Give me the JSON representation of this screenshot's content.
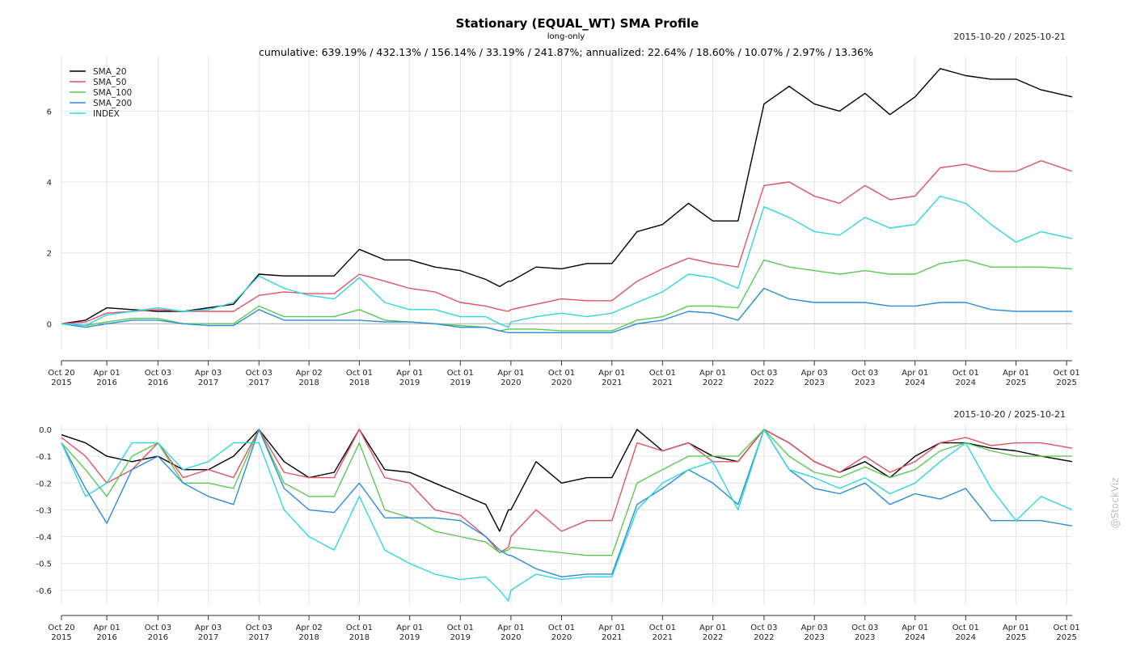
{
  "chart_data": [
    {
      "type": "line",
      "title": "Stationary (EQUAL_WT) SMA Profile",
      "subtitle": "long-only",
      "date_range": "2015-10-20 / 2025-10-21",
      "summary": "cumulative: 639.19% / 432.13% / 156.14% / 33.19% / 241.87%; annualized: 22.64% / 18.60% / 10.07% / 2.97% / 13.36%",
      "ylim": [
        -0.7,
        7.4
      ],
      "yticks": [
        0,
        2,
        4,
        6
      ],
      "ytick_labels": [
        "0",
        "2",
        "4",
        "6"
      ],
      "grid": true,
      "legend_position": "top-left",
      "x_ticks": [
        {
          "date": "2015-10-20",
          "line1": "Oct 20",
          "line2": "2015"
        },
        {
          "date": "2016-04-01",
          "line1": "Apr 01",
          "line2": "2016"
        },
        {
          "date": "2016-10-03",
          "line1": "Oct 03",
          "line2": "2016"
        },
        {
          "date": "2017-04-03",
          "line1": "Apr 03",
          "line2": "2017"
        },
        {
          "date": "2017-10-03",
          "line1": "Oct 03",
          "line2": "2017"
        },
        {
          "date": "2018-04-02",
          "line1": "Apr 02",
          "line2": "2018"
        },
        {
          "date": "2018-10-01",
          "line1": "Oct 01",
          "line2": "2018"
        },
        {
          "date": "2019-04-01",
          "line1": "Apr 01",
          "line2": "2019"
        },
        {
          "date": "2019-10-01",
          "line1": "Oct 01",
          "line2": "2019"
        },
        {
          "date": "2020-04-01",
          "line1": "Apr 01",
          "line2": "2020"
        },
        {
          "date": "2020-10-01",
          "line1": "Oct 01",
          "line2": "2020"
        },
        {
          "date": "2021-04-01",
          "line1": "Apr 01",
          "line2": "2021"
        },
        {
          "date": "2021-10-01",
          "line1": "Oct 01",
          "line2": "2021"
        },
        {
          "date": "2022-04-01",
          "line1": "Apr 01",
          "line2": "2022"
        },
        {
          "date": "2022-10-03",
          "line1": "Oct 03",
          "line2": "2022"
        },
        {
          "date": "2023-04-03",
          "line1": "Apr 03",
          "line2": "2023"
        },
        {
          "date": "2023-10-03",
          "line1": "Oct 03",
          "line2": "2023"
        },
        {
          "date": "2024-04-01",
          "line1": "Apr 01",
          "line2": "2024"
        },
        {
          "date": "2024-10-01",
          "line1": "Oct 01",
          "line2": "2024"
        },
        {
          "date": "2025-04-01",
          "line1": "Apr 01",
          "line2": "2025"
        },
        {
          "date": "2025-10-01",
          "line1": "Oct 01",
          "line2": "2025"
        }
      ],
      "x": [
        "2015-10-20",
        "2016-01-15",
        "2016-04-01",
        "2016-07-01",
        "2016-10-03",
        "2017-01-02",
        "2017-04-03",
        "2017-07-03",
        "2017-10-03",
        "2018-01-02",
        "2018-04-02",
        "2018-07-02",
        "2018-10-01",
        "2019-01-01",
        "2019-04-01",
        "2019-07-01",
        "2019-10-01",
        "2020-01-01",
        "2020-02-20",
        "2020-03-23",
        "2020-04-01",
        "2020-07-01",
        "2020-10-01",
        "2021-01-01",
        "2021-04-01",
        "2021-07-01",
        "2021-10-01",
        "2022-01-03",
        "2022-04-01",
        "2022-07-01",
        "2022-10-03",
        "2023-01-02",
        "2023-04-03",
        "2023-07-03",
        "2023-10-03",
        "2024-01-01",
        "2024-04-01",
        "2024-07-01",
        "2024-10-01",
        "2025-01-01",
        "2025-04-01",
        "2025-07-01",
        "2025-10-21"
      ],
      "series": [
        {
          "name": "SMA_20",
          "color": "#000000",
          "values": [
            0.0,
            0.1,
            0.45,
            0.4,
            0.35,
            0.35,
            0.45,
            0.55,
            1.4,
            1.35,
            1.35,
            1.35,
            2.1,
            1.8,
            1.8,
            1.6,
            1.5,
            1.25,
            1.05,
            1.2,
            1.2,
            1.6,
            1.55,
            1.7,
            1.7,
            2.6,
            2.8,
            3.4,
            2.9,
            2.9,
            6.2,
            6.7,
            6.2,
            6.0,
            6.5,
            5.9,
            6.4,
            7.2,
            7.0,
            6.9,
            6.9,
            6.6,
            6.4
          ]
        },
        {
          "name": "SMA_50",
          "color": "#e05263",
          "values": [
            0.0,
            0.05,
            0.3,
            0.35,
            0.4,
            0.35,
            0.35,
            0.35,
            0.8,
            0.9,
            0.85,
            0.85,
            1.4,
            1.2,
            1.0,
            0.9,
            0.6,
            0.5,
            0.4,
            0.35,
            0.4,
            0.55,
            0.7,
            0.65,
            0.65,
            1.2,
            1.55,
            1.85,
            1.7,
            1.6,
            3.9,
            4.0,
            3.6,
            3.4,
            3.9,
            3.5,
            3.6,
            4.4,
            4.5,
            4.3,
            4.3,
            4.6,
            4.3
          ]
        },
        {
          "name": "SMA_100",
          "color": "#5cc854",
          "values": [
            0.0,
            -0.05,
            0.05,
            0.15,
            0.15,
            0.0,
            0.0,
            0.0,
            0.5,
            0.2,
            0.2,
            0.2,
            0.4,
            0.1,
            0.05,
            0.0,
            -0.05,
            -0.1,
            -0.2,
            -0.15,
            -0.15,
            -0.15,
            -0.2,
            -0.2,
            -0.2,
            0.1,
            0.2,
            0.5,
            0.5,
            0.45,
            1.8,
            1.6,
            1.5,
            1.4,
            1.5,
            1.4,
            1.4,
            1.7,
            1.8,
            1.6,
            1.6,
            1.6,
            1.55
          ]
        },
        {
          "name": "SMA_200",
          "color": "#2b8cd9",
          "values": [
            0.0,
            -0.1,
            0.0,
            0.1,
            0.1,
            0.0,
            -0.05,
            -0.05,
            0.4,
            0.1,
            0.1,
            0.1,
            0.1,
            0.05,
            0.05,
            0.0,
            -0.1,
            -0.1,
            -0.2,
            -0.25,
            -0.25,
            -0.25,
            -0.25,
            -0.25,
            -0.25,
            0.0,
            0.1,
            0.35,
            0.3,
            0.1,
            1.0,
            0.7,
            0.6,
            0.6,
            0.6,
            0.5,
            0.5,
            0.6,
            0.6,
            0.4,
            0.35,
            0.35,
            0.35
          ]
        },
        {
          "name": "INDEX",
          "color": "#2fd6e0",
          "values": [
            0.0,
            -0.05,
            0.25,
            0.35,
            0.45,
            0.35,
            0.4,
            0.6,
            1.35,
            1.0,
            0.8,
            0.7,
            1.3,
            0.6,
            0.4,
            0.4,
            0.2,
            0.2,
            0.0,
            -0.1,
            0.05,
            0.2,
            0.3,
            0.2,
            0.3,
            0.6,
            0.9,
            1.4,
            1.3,
            1.0,
            3.3,
            3.0,
            2.6,
            2.5,
            3.0,
            2.7,
            2.8,
            3.6,
            3.4,
            2.8,
            2.3,
            2.6,
            2.4
          ]
        }
      ]
    },
    {
      "type": "line",
      "title": "",
      "date_range": "2015-10-20 / 2025-10-21",
      "ylim": [
        -0.67,
        0.0
      ],
      "yticks": [
        0.0,
        -0.1,
        -0.2,
        -0.3,
        -0.4,
        -0.5,
        -0.6
      ],
      "ytick_labels": [
        "0.0",
        "-0.1",
        "-0.2",
        "-0.3",
        "-0.4",
        "-0.5",
        "-0.6"
      ],
      "grid": true,
      "x": [
        "2015-10-20",
        "2016-01-15",
        "2016-04-01",
        "2016-07-01",
        "2016-10-03",
        "2017-01-02",
        "2017-04-03",
        "2017-07-03",
        "2017-10-03",
        "2018-01-02",
        "2018-04-02",
        "2018-07-02",
        "2018-10-01",
        "2019-01-01",
        "2019-04-01",
        "2019-07-01",
        "2019-10-01",
        "2020-01-01",
        "2020-02-20",
        "2020-03-23",
        "2020-04-01",
        "2020-07-01",
        "2020-10-01",
        "2021-01-01",
        "2021-04-01",
        "2021-07-01",
        "2021-10-01",
        "2022-01-03",
        "2022-04-01",
        "2022-07-01",
        "2022-10-03",
        "2023-01-02",
        "2023-04-03",
        "2023-07-03",
        "2023-10-03",
        "2024-01-01",
        "2024-04-01",
        "2024-07-01",
        "2024-10-01",
        "2025-01-01",
        "2025-04-01",
        "2025-07-01",
        "2025-10-21"
      ],
      "series": [
        {
          "name": "SMA_20",
          "color": "#000000",
          "values": [
            -0.02,
            -0.05,
            -0.1,
            -0.12,
            -0.1,
            -0.15,
            -0.15,
            -0.1,
            0.0,
            -0.12,
            -0.18,
            -0.16,
            0.0,
            -0.15,
            -0.16,
            -0.2,
            -0.24,
            -0.28,
            -0.38,
            -0.3,
            -0.3,
            -0.12,
            -0.2,
            -0.18,
            -0.18,
            0.0,
            -0.08,
            -0.05,
            -0.1,
            -0.12,
            0.0,
            -0.05,
            -0.12,
            -0.16,
            -0.12,
            -0.18,
            -0.1,
            -0.05,
            -0.05,
            -0.07,
            -0.08,
            -0.1,
            -0.12
          ]
        },
        {
          "name": "SMA_50",
          "color": "#e05263",
          "values": [
            -0.03,
            -0.1,
            -0.2,
            -0.15,
            -0.05,
            -0.18,
            -0.15,
            -0.18,
            0.0,
            -0.16,
            -0.18,
            -0.18,
            0.0,
            -0.18,
            -0.2,
            -0.3,
            -0.32,
            -0.4,
            -0.46,
            -0.44,
            -0.4,
            -0.3,
            -0.38,
            -0.34,
            -0.34,
            -0.05,
            -0.08,
            -0.05,
            -0.12,
            -0.12,
            0.0,
            -0.05,
            -0.12,
            -0.16,
            -0.1,
            -0.16,
            -0.12,
            -0.05,
            -0.03,
            -0.06,
            -0.05,
            -0.05,
            -0.07
          ]
        },
        {
          "name": "SMA_100",
          "color": "#5cc854",
          "values": [
            -0.05,
            -0.15,
            -0.25,
            -0.1,
            -0.05,
            -0.2,
            -0.2,
            -0.22,
            0.0,
            -0.2,
            -0.25,
            -0.25,
            -0.05,
            -0.3,
            -0.33,
            -0.38,
            -0.4,
            -0.42,
            -0.46,
            -0.45,
            -0.44,
            -0.45,
            -0.46,
            -0.47,
            -0.47,
            -0.2,
            -0.15,
            -0.1,
            -0.1,
            -0.1,
            0.0,
            -0.1,
            -0.16,
            -0.18,
            -0.14,
            -0.18,
            -0.15,
            -0.08,
            -0.05,
            -0.08,
            -0.1,
            -0.1,
            -0.1
          ]
        },
        {
          "name": "SMA_200",
          "color": "#2b8cd9",
          "values": [
            -0.05,
            -0.22,
            -0.35,
            -0.15,
            -0.1,
            -0.2,
            -0.25,
            -0.28,
            0.0,
            -0.22,
            -0.3,
            -0.31,
            -0.2,
            -0.33,
            -0.33,
            -0.33,
            -0.34,
            -0.4,
            -0.45,
            -0.47,
            -0.47,
            -0.52,
            -0.55,
            -0.54,
            -0.54,
            -0.28,
            -0.22,
            -0.15,
            -0.2,
            -0.28,
            0.0,
            -0.15,
            -0.22,
            -0.24,
            -0.2,
            -0.28,
            -0.24,
            -0.26,
            -0.22,
            -0.34,
            -0.34,
            -0.34,
            -0.36
          ]
        },
        {
          "name": "INDEX",
          "color": "#2fd6e0",
          "values": [
            -0.05,
            -0.25,
            -0.2,
            -0.05,
            -0.05,
            -0.15,
            -0.12,
            -0.05,
            -0.05,
            -0.3,
            -0.4,
            -0.45,
            -0.25,
            -0.45,
            -0.5,
            -0.54,
            -0.56,
            -0.55,
            -0.6,
            -0.64,
            -0.6,
            -0.54,
            -0.56,
            -0.55,
            -0.55,
            -0.3,
            -0.2,
            -0.15,
            -0.12,
            -0.3,
            0.0,
            -0.15,
            -0.18,
            -0.22,
            -0.18,
            -0.24,
            -0.2,
            -0.12,
            -0.05,
            -0.22,
            -0.34,
            -0.25,
            -0.3
          ]
        }
      ]
    }
  ],
  "watermark": "@StockViz"
}
